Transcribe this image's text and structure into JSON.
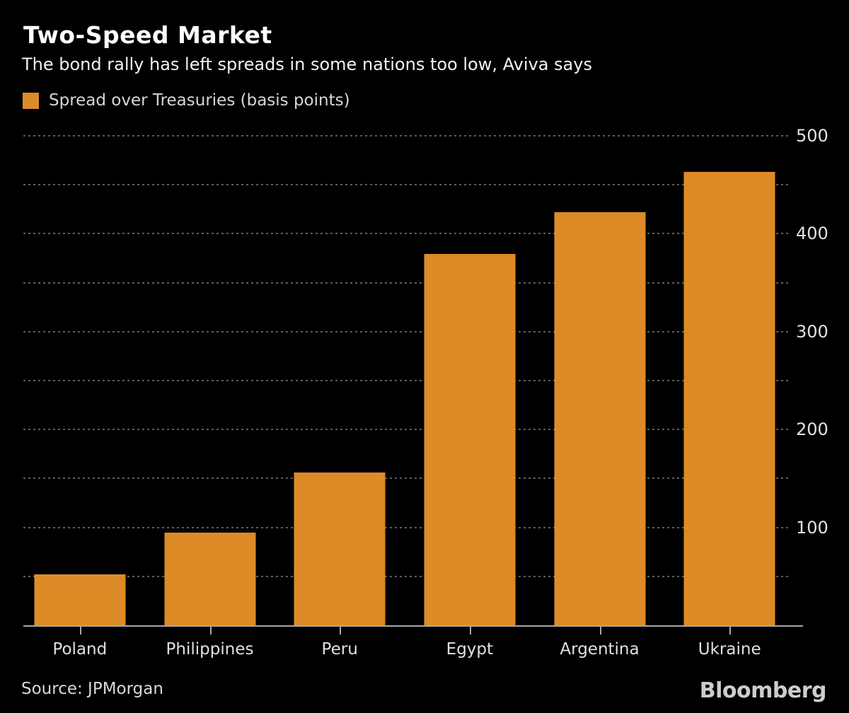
{
  "header": {
    "title": "Two-Speed Market",
    "subtitle": "The bond rally has left spreads in some nations too low, Aviva says"
  },
  "legend": {
    "label": "Spread over Treasuries (basis points)",
    "swatch_color": "#dd8b27"
  },
  "chart_data": {
    "type": "bar",
    "title": "Two-Speed Market",
    "subtitle": "The bond rally has left spreads in some nations too low, Aviva says",
    "series_label": "Spread over Treasuries (basis points)",
    "categories": [
      "Poland",
      "Philippines",
      "Peru",
      "Egypt",
      "Argentina",
      "Ukraine"
    ],
    "values": [
      52,
      95,
      156,
      379,
      422,
      463
    ],
    "xlabel": "",
    "ylabel": "Spread over Treasuries (basis points)",
    "ylim": [
      0,
      500
    ],
    "yticks_labeled": [
      100,
      200,
      300,
      400,
      500
    ],
    "gridline_step": 50,
    "grid": "horizontal-dotted",
    "legend_position": "top-left",
    "bar_color": "#dd8b27",
    "background_color": "#000000"
  },
  "footer": {
    "source": "Source: JPMorgan",
    "brand": "Bloomberg"
  }
}
